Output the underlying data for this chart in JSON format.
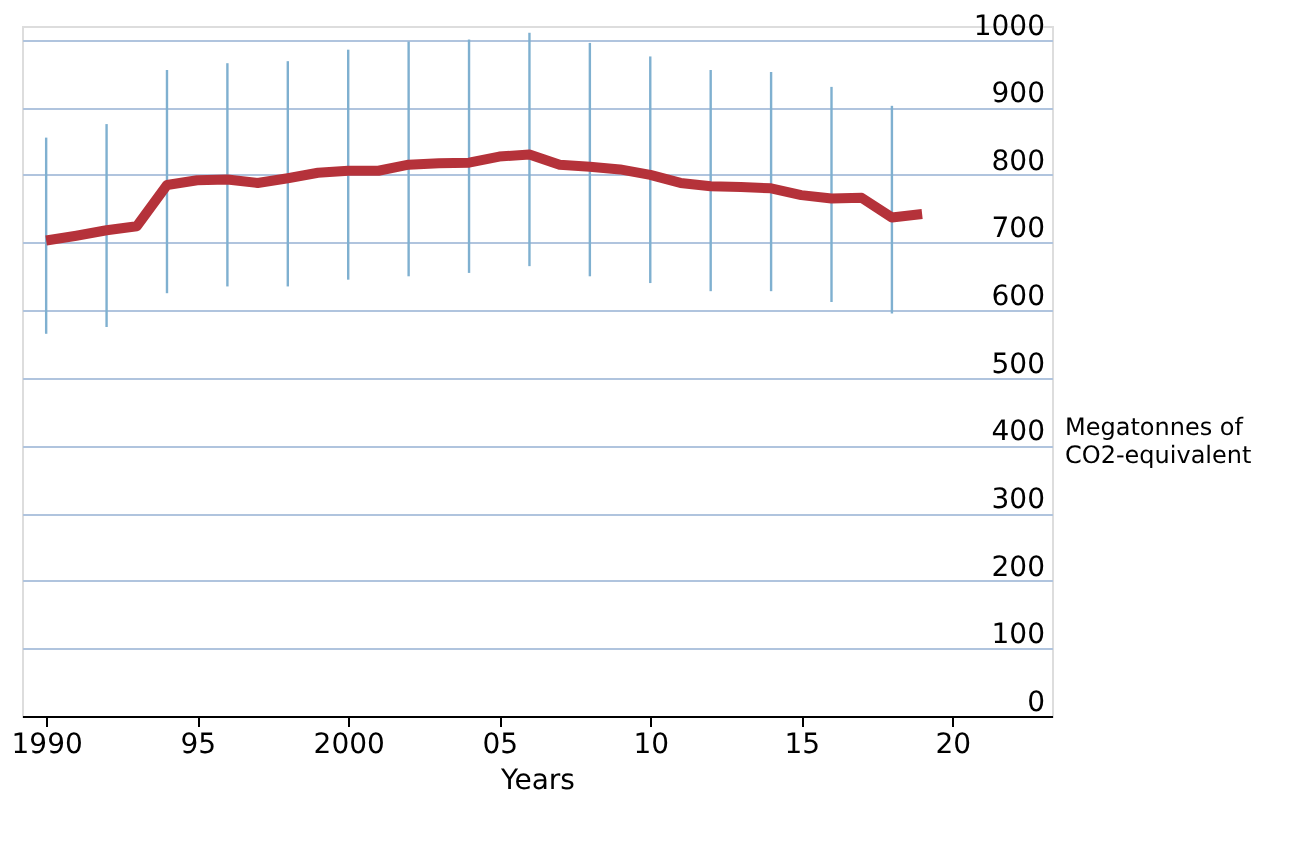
{
  "chart_data": {
    "type": "line",
    "xlabel": "Years",
    "ylabel": "Megatonnes of CO2-equivalent",
    "x": [
      1990,
      1991,
      1992,
      1993,
      1994,
      1995,
      1996,
      1997,
      1998,
      1999,
      2000,
      2001,
      2002,
      2003,
      2004,
      2005,
      2006,
      2007,
      2008,
      2009,
      2010,
      2011,
      2012,
      2013,
      2014,
      2015,
      2016,
      2017,
      2018,
      2019
    ],
    "series": [
      {
        "color": "#b5323a",
        "values": [
          703,
          710,
          718,
          724,
          785,
          792,
          793,
          788,
          795,
          803,
          806,
          806,
          815,
          817,
          818,
          827,
          830,
          815,
          812,
          808,
          800,
          788,
          783,
          782,
          780,
          770,
          765,
          766,
          737,
          742
        ],
        "errors": [
          [
            565,
            855
          ],
          null,
          [
            575,
            875
          ],
          null,
          [
            625,
            955
          ],
          null,
          [
            635,
            965
          ],
          null,
          [
            635,
            968
          ],
          null,
          [
            645,
            985
          ],
          null,
          [
            650,
            997
          ],
          null,
          [
            655,
            1000
          ],
          null,
          [
            665,
            1010
          ],
          null,
          [
            650,
            995
          ],
          null,
          [
            640,
            975
          ],
          null,
          [
            628,
            955
          ],
          null,
          [
            628,
            952
          ],
          null,
          [
            612,
            930
          ],
          null,
          [
            595,
            902
          ],
          null
        ]
      }
    ],
    "xlim": [
      1989.2,
      2023.3
    ],
    "xticks": [
      1990,
      {
        "value": 1995,
        "label": "95"
      },
      2000,
      {
        "value": 2005,
        "label": "05"
      },
      {
        "value": 2010,
        "label": "10"
      },
      {
        "value": 2015,
        "label": "15"
      },
      {
        "value": 2020,
        "label": "20"
      }
    ],
    "ylim": [
      0,
      1020
    ],
    "yticks": [
      0,
      100,
      200,
      300,
      400,
      500,
      600,
      700,
      800,
      900,
      1000
    ],
    "grid": "y",
    "marker": "none",
    "line_style": "solid"
  }
}
